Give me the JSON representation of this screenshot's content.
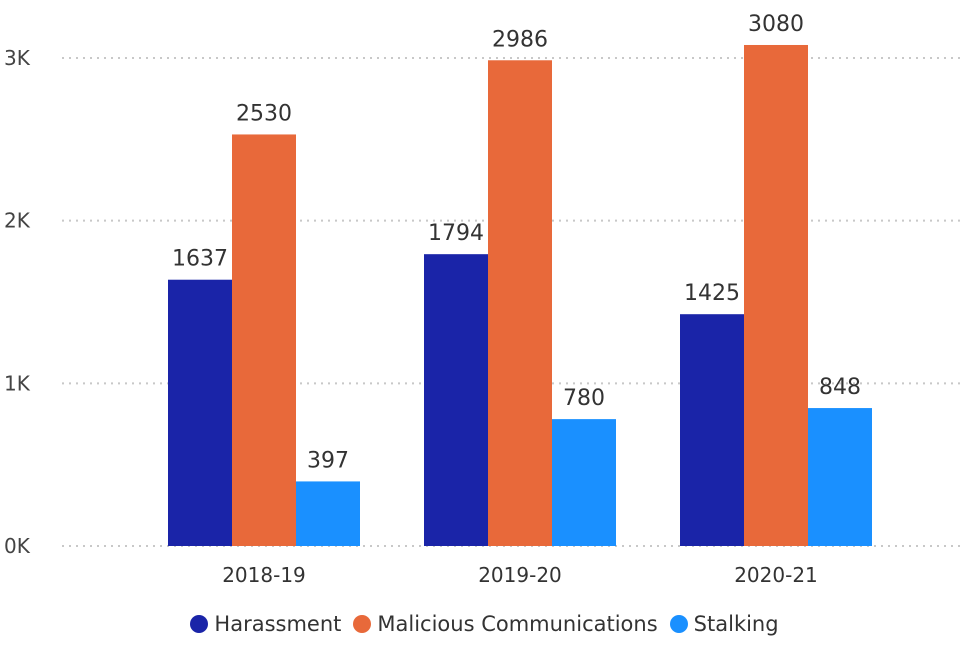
{
  "chart_data": {
    "type": "bar",
    "categories": [
      "2018-19",
      "2019-20",
      "2020-21"
    ],
    "series": [
      {
        "name": "Harassment",
        "color": "#1a24a8",
        "values": [
          1637,
          1794,
          1425
        ]
      },
      {
        "name": "Malicious Communications",
        "color": "#e8693a",
        "values": [
          2530,
          2986,
          3080
        ]
      },
      {
        "name": "Stalking",
        "color": "#1a90ff",
        "values": [
          397,
          780,
          848
        ]
      }
    ],
    "y_ticks": [
      {
        "value": 0,
        "label": "0K"
      },
      {
        "value": 1000,
        "label": "1K"
      },
      {
        "value": 2000,
        "label": "2K"
      },
      {
        "value": 3000,
        "label": "3K"
      }
    ],
    "ylim": [
      0,
      3000
    ],
    "grid": true,
    "legend_position": "bottom",
    "title": "",
    "xlabel": "",
    "ylabel": ""
  }
}
